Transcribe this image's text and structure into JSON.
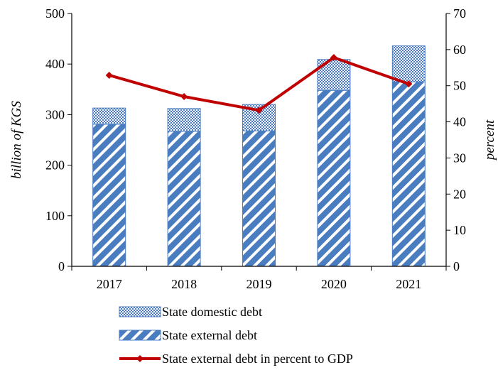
{
  "chart_data": {
    "type": "bar",
    "stacked": true,
    "categories": [
      "2017",
      "2018",
      "2019",
      "2020",
      "2021"
    ],
    "ylabel": "billion of KGS",
    "y2label": "percent",
    "ylim": [
      0,
      500
    ],
    "yticks": [
      0,
      100,
      200,
      300,
      400,
      500
    ],
    "y2lim": [
      0,
      70
    ],
    "y2ticks": [
      0,
      10,
      20,
      30,
      40,
      50,
      60,
      70
    ],
    "grid": false,
    "legend_position": "bottom",
    "series": [
      {
        "name": "State external debt",
        "type": "bar",
        "axis": "left",
        "values": [
          281,
          267,
          268,
          348,
          365
        ],
        "color": "#4a7cc0",
        "pattern": "diagonal-stripes"
      },
      {
        "name": "State domestic debt",
        "type": "bar",
        "axis": "left",
        "values": [
          32,
          45,
          52,
          61,
          71
        ],
        "color": "#4a7cc0",
        "pattern": "checkered"
      },
      {
        "name": "State external debt in percent to GDP",
        "type": "line",
        "axis": "right",
        "values": [
          52.9,
          47.0,
          43.2,
          57.8,
          50.5
        ],
        "color": "#c00000",
        "marker": "diamond"
      }
    ],
    "legend": [
      "State domestic debt",
      "State external debt",
      "State external debt in percent to GDP"
    ]
  }
}
